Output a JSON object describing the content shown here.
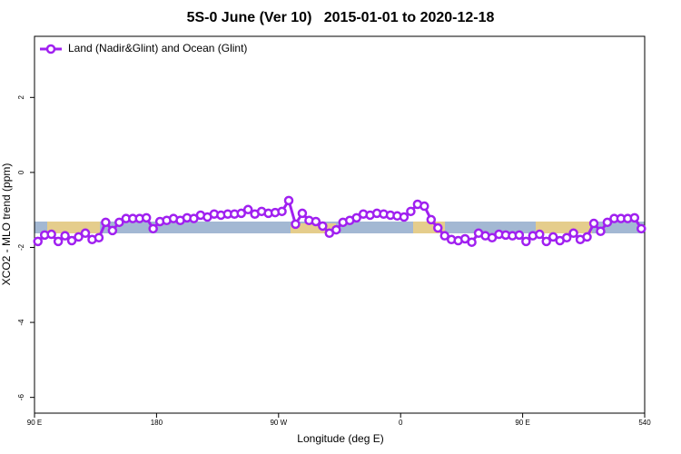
{
  "chart_data": {
    "type": "line",
    "title": "5S-0 June (Ver 10)   2015-01-01 to 2020-12-18",
    "xlabel": "Longitude (deg E)",
    "ylabel": "XCO2 - MLO trend (ppm)",
    "x": [
      92.5,
      97.5,
      102.5,
      107.5,
      112.5,
      117.5,
      122.5,
      127.5,
      132.5,
      137.5,
      142.5,
      147.5,
      152.5,
      157.5,
      162.5,
      167.5,
      172.5,
      177.5,
      182.5,
      187.5,
      192.5,
      197.5,
      202.5,
      207.5,
      212.5,
      217.5,
      222.5,
      227.5,
      232.5,
      237.5,
      242.5,
      247.5,
      252.5,
      257.5,
      262.5,
      267.5,
      272.5,
      277.5,
      282.5,
      287.5,
      292.5,
      297.5,
      302.5,
      307.5,
      312.5,
      317.5,
      322.5,
      327.5,
      332.5,
      337.5,
      342.5,
      347.5,
      352.5,
      357.5,
      362.5,
      367.5,
      372.5,
      377.5,
      382.5,
      387.5,
      392.5,
      397.5,
      402.5,
      407.5,
      412.5,
      417.5,
      422.5,
      427.5,
      432.5,
      437.5,
      442.5,
      447.5,
      452.5,
      457.5,
      462.5,
      467.5,
      472.5,
      477.5,
      482.5,
      487.5,
      492.5,
      497.5,
      502.5,
      507.5,
      512.5,
      517.5,
      522.5,
      527.5,
      532.5,
      537.5
    ],
    "series": [
      {
        "name": "Land (Nadir&Glint) and Ocean (Glint)",
        "color": "#a020f0",
        "values": [
          -1.84,
          -1.67,
          -1.65,
          -1.84,
          -1.69,
          -1.82,
          -1.72,
          -1.62,
          -1.79,
          -1.74,
          -1.33,
          -1.55,
          -1.33,
          -1.23,
          -1.23,
          -1.23,
          -1.21,
          -1.5,
          -1.31,
          -1.28,
          -1.23,
          -1.28,
          -1.21,
          -1.23,
          -1.14,
          -1.19,
          -1.11,
          -1.14,
          -1.11,
          -1.11,
          -1.09,
          -0.99,
          -1.11,
          -1.04,
          -1.09,
          -1.07,
          -1.04,
          -0.75,
          -1.38,
          -1.09,
          -1.28,
          -1.31,
          -1.43,
          -1.62,
          -1.53,
          -1.33,
          -1.28,
          -1.21,
          -1.11,
          -1.14,
          -1.09,
          -1.11,
          -1.14,
          -1.16,
          -1.19,
          -1.04,
          -0.85,
          -0.9,
          -1.26,
          -1.48,
          -1.69,
          -1.79,
          -1.82,
          -1.77,
          -1.86,
          -1.62,
          -1.69,
          -1.74,
          -1.65,
          -1.67,
          -1.69,
          -1.67,
          -1.84,
          -1.69,
          -1.65,
          -1.84,
          -1.72,
          -1.82,
          -1.74,
          -1.62,
          -1.79,
          -1.72,
          -1.36,
          -1.57,
          -1.33,
          -1.23,
          -1.23,
          -1.23,
          -1.21,
          -1.5
        ]
      }
    ],
    "xlim": [
      90,
      540
    ],
    "xticks": [
      {
        "value": 90,
        "label": "90 E"
      },
      180,
      {
        "value": 270,
        "label": "90 W"
      },
      {
        "value": 360,
        "label": "0"
      },
      {
        "value": 450,
        "label": "90 E"
      },
      540
    ],
    "ylim": [
      -6.42,
      3.63
    ],
    "yticks": [
      -6,
      -4,
      -2,
      0,
      2
    ],
    "legend": "top-left"
  }
}
